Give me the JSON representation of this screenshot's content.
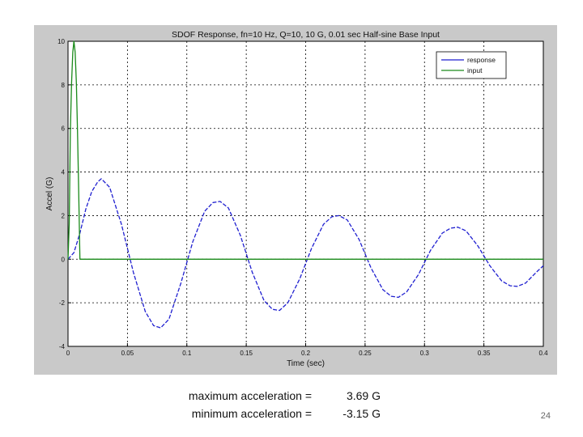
{
  "chart_data": {
    "type": "line",
    "title": "SDOF Response, fn=10 Hz, Q=10,    10 G, 0.01 sec Half-sine Base Input",
    "xlabel": "Time (sec)",
    "ylabel": "Accel (G)",
    "xlim": [
      0,
      0.4
    ],
    "ylim": [
      -4,
      10
    ],
    "xticks": [
      0,
      0.05,
      0.1,
      0.15,
      0.2,
      0.25,
      0.3,
      0.35,
      0.4
    ],
    "xtick_labels": [
      "0",
      "0.05",
      "0.1",
      "0.15",
      "0.2",
      "0.25",
      "0.3",
      "0.35",
      "0.4"
    ],
    "yticks": [
      -4,
      -2,
      0,
      2,
      4,
      6,
      8,
      10
    ],
    "ytick_labels": [
      "-4",
      "-2",
      "0",
      "2",
      "4",
      "6",
      "8",
      "10"
    ],
    "grid": true,
    "legend_position": "top-right",
    "series": [
      {
        "name": "response",
        "color": "#1f1fd0",
        "x": [
          0,
          0.005,
          0.01,
          0.015,
          0.02,
          0.025,
          0.028,
          0.035,
          0.045,
          0.055,
          0.065,
          0.072,
          0.078,
          0.085,
          0.095,
          0.105,
          0.115,
          0.122,
          0.128,
          0.135,
          0.145,
          0.155,
          0.165,
          0.172,
          0.178,
          0.185,
          0.195,
          0.205,
          0.215,
          0.222,
          0.228,
          0.235,
          0.245,
          0.255,
          0.265,
          0.272,
          0.278,
          0.285,
          0.295,
          0.305,
          0.315,
          0.322,
          0.328,
          0.335,
          0.345,
          0.355,
          0.365,
          0.372,
          0.378,
          0.385,
          0.395,
          0.4
        ],
        "y": [
          0,
          0.3,
          1.2,
          2.3,
          3.1,
          3.55,
          3.69,
          3.3,
          1.6,
          -0.6,
          -2.4,
          -3.05,
          -3.15,
          -2.75,
          -1.1,
          0.8,
          2.2,
          2.6,
          2.65,
          2.35,
          1.1,
          -0.6,
          -1.9,
          -2.3,
          -2.35,
          -2.0,
          -0.9,
          0.5,
          1.6,
          1.95,
          2.0,
          1.8,
          0.9,
          -0.4,
          -1.4,
          -1.7,
          -1.75,
          -1.5,
          -0.7,
          0.4,
          1.2,
          1.42,
          1.47,
          1.3,
          0.6,
          -0.3,
          -1.0,
          -1.22,
          -1.25,
          -1.1,
          -0.55,
          -0.3
        ]
      },
      {
        "name": "input",
        "color": "#1a8a1a",
        "x": [
          0,
          0.001,
          0.002,
          0.003,
          0.004,
          0.005,
          0.006,
          0.007,
          0.008,
          0.009,
          0.01,
          0.012,
          0.02,
          0.1,
          0.2,
          0.3,
          0.4
        ],
        "y": [
          0,
          1.6,
          5.9,
          8.1,
          9.5,
          10,
          9.5,
          8.1,
          5.9,
          3.1,
          0,
          0,
          0,
          0,
          0,
          0,
          0
        ]
      }
    ]
  },
  "summary": {
    "max_label": "maximum acceleration =",
    "max_value": "3.69 G",
    "min_label": "minimum acceleration =",
    "min_value": "-3.15 G"
  },
  "slide_number": "24"
}
